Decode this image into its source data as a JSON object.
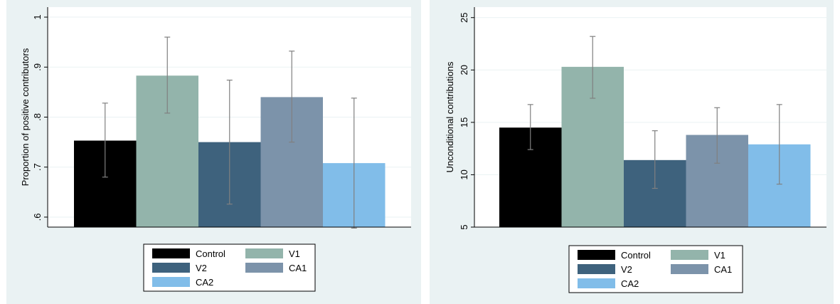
{
  "colors": {
    "panel_bg": "#eaf2f3",
    "plot_bg": "#ffffff",
    "grid": "#eaf2f3",
    "error_bar": "#808080",
    "Control": "#000000",
    "V1": "#93b4ab",
    "V2": "#3e627d",
    "CA1": "#7c93aa",
    "CA2": "#81bde9"
  },
  "chart_data": [
    {
      "type": "bar",
      "title": "",
      "xlabel": "",
      "ylabel": "Proportion of positive contributors",
      "ylim": [
        0.58,
        1.02
      ],
      "yticks": [
        0.6,
        0.7,
        0.8,
        0.9,
        1.0
      ],
      "ytick_labels": [
        ".6",
        ".7",
        ".8",
        ".9",
        "1"
      ],
      "grid": true,
      "legend_position": "bottom",
      "series": [
        {
          "name": "Control",
          "value": 0.753,
          "ci_low": 0.68,
          "ci_high": 0.828
        },
        {
          "name": "V1",
          "value": 0.883,
          "ci_low": 0.808,
          "ci_high": 0.96
        },
        {
          "name": "V2",
          "value": 0.75,
          "ci_low": 0.626,
          "ci_high": 0.874
        },
        {
          "name": "CA1",
          "value": 0.84,
          "ci_low": 0.75,
          "ci_high": 0.932
        },
        {
          "name": "CA2",
          "value": 0.708,
          "ci_low": 0.578,
          "ci_high": 0.838
        }
      ]
    },
    {
      "type": "bar",
      "title": "",
      "xlabel": "",
      "ylabel": "Unconditional contributions",
      "ylim": [
        5,
        26
      ],
      "yticks": [
        5,
        10,
        15,
        20,
        25
      ],
      "ytick_labels": [
        "5",
        "10",
        "15",
        "20",
        "25"
      ],
      "grid": true,
      "legend_position": "bottom",
      "series": [
        {
          "name": "Control",
          "value": 14.5,
          "ci_low": 12.4,
          "ci_high": 16.7
        },
        {
          "name": "V1",
          "value": 20.3,
          "ci_low": 17.3,
          "ci_high": 23.2
        },
        {
          "name": "V2",
          "value": 11.4,
          "ci_low": 8.7,
          "ci_high": 14.2
        },
        {
          "name": "CA1",
          "value": 13.8,
          "ci_low": 11.1,
          "ci_high": 16.4
        },
        {
          "name": "CA2",
          "value": 12.9,
          "ci_low": 9.1,
          "ci_high": 16.7
        }
      ]
    }
  ]
}
